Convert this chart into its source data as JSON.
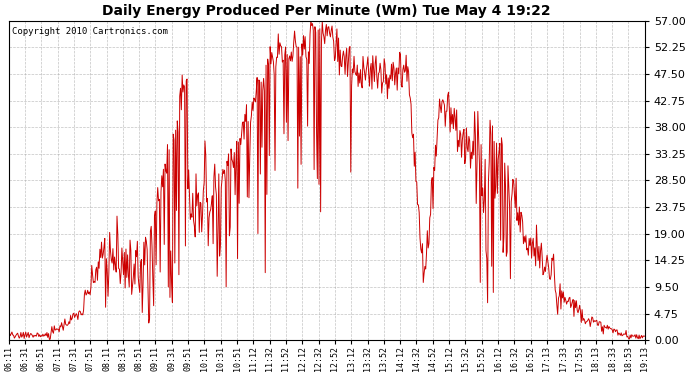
{
  "title": "Daily Energy Produced Per Minute (Wm) Tue May 4 19:22",
  "copyright": "Copyright 2010 Cartronics.com",
  "line_color": "#cc0000",
  "bg_color": "#ffffff",
  "plot_bg_color": "#ffffff",
  "grid_color": "#aaaaaa",
  "yticks": [
    0.0,
    4.75,
    9.5,
    14.25,
    19.0,
    23.75,
    28.5,
    33.25,
    38.0,
    42.75,
    47.5,
    52.25,
    57.0
  ],
  "ylim": [
    0.0,
    57.0
  ],
  "xtick_labels": [
    "06:11",
    "06:31",
    "06:51",
    "07:11",
    "07:31",
    "07:51",
    "08:11",
    "08:31",
    "08:51",
    "09:11",
    "09:31",
    "09:51",
    "10:11",
    "10:31",
    "10:51",
    "11:12",
    "11:32",
    "11:52",
    "12:12",
    "12:32",
    "12:52",
    "13:12",
    "13:32",
    "13:52",
    "14:12",
    "14:32",
    "14:52",
    "15:12",
    "15:32",
    "15:52",
    "16:12",
    "16:32",
    "16:52",
    "17:13",
    "17:33",
    "17:53",
    "18:13",
    "18:33",
    "18:53",
    "19:13"
  ],
  "figsize": [
    6.9,
    3.75
  ],
  "dpi": 100
}
